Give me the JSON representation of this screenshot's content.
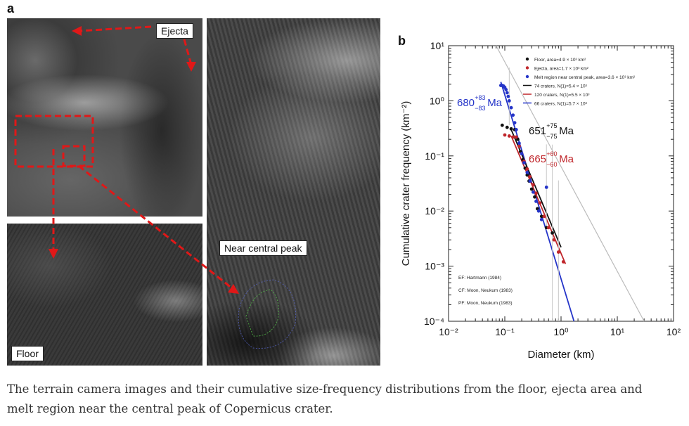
{
  "panel_a": {
    "label": "a",
    "tags": {
      "ejecta": "Ejecta",
      "near_central_peak": "Near central peak",
      "floor": "Floor"
    }
  },
  "panel_b": {
    "label": "b"
  },
  "chart_data": {
    "type": "scatter",
    "x_scale": "log",
    "y_scale": "log",
    "xlim": [
      0.01,
      100
    ],
    "ylim": [
      0.0001,
      10
    ],
    "x_ticks": [
      "10⁻²",
      "10⁻¹",
      "10⁰",
      "10¹",
      "10²"
    ],
    "y_ticks": [
      "10¹",
      "10⁰",
      "10⁻¹",
      "10⁻²",
      "10⁻³",
      "10⁻⁴"
    ],
    "xlabel": "Diameter (km)",
    "ylabel": "Cumulative crater frequency (km⁻²)",
    "legend_position": "top-right",
    "legend": [
      {
        "text": "Floor, area=4.9 × 10³ km²",
        "color": "#111111",
        "marker": "dot"
      },
      {
        "text": "Ejecta, area=1.7 × 10³ km²",
        "color": "#c0262b",
        "marker": "dot"
      },
      {
        "text": "Melt region near central peak, area=3.6 × 10³ km²",
        "color": "#2434c8",
        "marker": "dot"
      },
      {
        "text": "74 craters, N(1)=5.4 × 10³",
        "color": "#111111",
        "marker": "line"
      },
      {
        "text": "120 craters, N(1)=5.5 × 10³",
        "color": "#c0262b",
        "marker": "line"
      },
      {
        "text": "66 craters, N(1)=5.7 × 10³",
        "color": "#2434c8",
        "marker": "line"
      }
    ],
    "notes": [
      "EF: Hartmann (1984)",
      "CF: Moon, Neukum (1983)",
      "PF: Moon, Neukum (1983)"
    ],
    "age_labels": [
      {
        "value": "680",
        "sup": "+83",
        "sub": "−83",
        "unit": "Ma",
        "color": "#2434c8"
      },
      {
        "value": "651",
        "sup": "+75",
        "sub": "−75",
        "unit": "Ma",
        "color": "#111111"
      },
      {
        "value": "665",
        "sup": "+60",
        "sub": "−60",
        "unit": "Ma",
        "color": "#c0262b"
      }
    ],
    "series": [
      {
        "name": "Floor",
        "color": "#111111",
        "x": [
          0.09,
          0.11,
          0.13,
          0.15,
          0.17,
          0.19,
          0.21,
          0.23,
          0.25,
          0.27,
          0.3,
          0.34,
          0.38,
          0.45,
          0.55,
          0.7
        ],
        "y": [
          0.36,
          0.33,
          0.31,
          0.3,
          0.2,
          0.12,
          0.085,
          0.06,
          0.045,
          0.035,
          0.025,
          0.018,
          0.011,
          0.008,
          0.005,
          0.004
        ]
      },
      {
        "name": "Ejecta",
        "color": "#c0262b",
        "x": [
          0.1,
          0.12,
          0.14,
          0.16,
          0.18,
          0.2,
          0.22,
          0.25,
          0.28,
          0.32,
          0.36,
          0.42,
          0.5,
          0.6,
          0.75,
          0.9,
          1.1
        ],
        "y": [
          0.24,
          0.23,
          0.22,
          0.22,
          0.15,
          0.11,
          0.08,
          0.058,
          0.042,
          0.03,
          0.021,
          0.014,
          0.008,
          0.005,
          0.003,
          0.0018,
          0.0012
        ]
      },
      {
        "name": "Melt region near central peak",
        "color": "#2434c8",
        "x": [
          0.085,
          0.09,
          0.095,
          0.1,
          0.105,
          0.11,
          0.115,
          0.12,
          0.13,
          0.14,
          0.15,
          0.16,
          0.18,
          0.2,
          0.22,
          0.25,
          0.28,
          0.32,
          0.36,
          0.4,
          0.45,
          0.55
        ],
        "y": [
          1.9,
          1.9,
          1.85,
          1.75,
          1.6,
          1.4,
          1.2,
          1.0,
          0.75,
          0.55,
          0.4,
          0.3,
          0.17,
          0.11,
          0.075,
          0.05,
          0.035,
          0.022,
          0.015,
          0.01,
          0.007,
          0.027
        ]
      }
    ],
    "fits": [
      {
        "name": "Melt fit",
        "color": "#2434c8",
        "x": [
          0.085,
          1.7
        ],
        "y": [
          2.2,
          0.0001
        ]
      },
      {
        "name": "Floor fit",
        "color": "#111111",
        "x": [
          0.13,
          1.0
        ],
        "y": [
          0.3,
          0.0022
        ]
      },
      {
        "name": "Ejecta fit",
        "color": "#c0262b",
        "x": [
          0.13,
          1.2
        ],
        "y": [
          0.23,
          0.0011
        ]
      },
      {
        "name": "Saturation",
        "color": "#bbbbbb",
        "x": [
          0.07,
          30
        ],
        "y": [
          10,
          0.0001
        ]
      }
    ]
  },
  "caption": "The terrain camera images and their cumulative size-frequency distributions from the floor, ejecta area and melt region near the central peak of Copernicus crater."
}
